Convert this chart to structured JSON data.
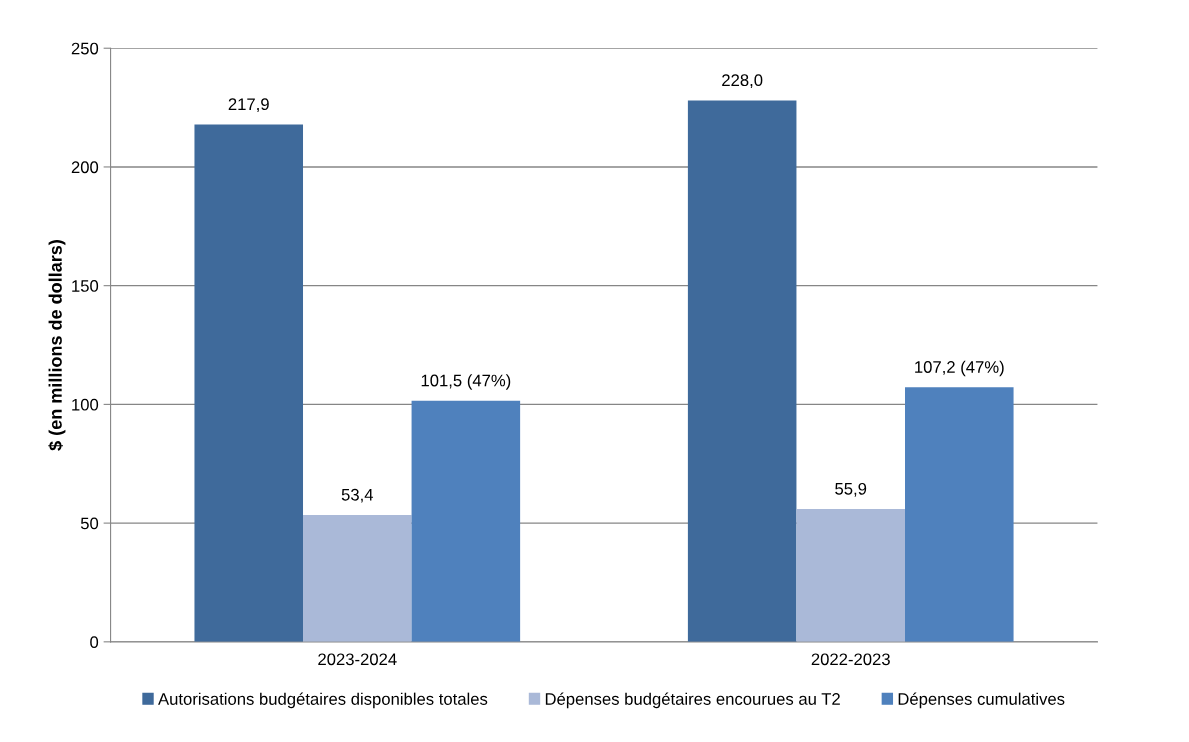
{
  "chart_data": {
    "type": "bar",
    "ylabel": "$ (en millions de dollars)",
    "categories": [
      "2023-2024",
      "2022-2023"
    ],
    "series": [
      {
        "name": "Autorisations budgétaires disponibles totales",
        "color": "#3f6a9b",
        "values": [
          217.9,
          228.0
        ],
        "value_labels": [
          "217,9",
          "228,0"
        ]
      },
      {
        "name": "Dépenses budgétaires encourues au T2",
        "color": "#aab9d8",
        "values": [
          53.4,
          55.9
        ],
        "value_labels": [
          "53,4",
          "55,9"
        ]
      },
      {
        "name": "Dépenses cumulatives",
        "color": "#4f81bd",
        "values": [
          101.5,
          107.2
        ],
        "value_labels": [
          "101,5 (47%)",
          "107,2 (47%)"
        ]
      }
    ],
    "ylim": [
      0,
      250
    ],
    "yticks": [
      0,
      50,
      100,
      150,
      200,
      250
    ],
    "grid": "y",
    "legend": "bottom"
  }
}
